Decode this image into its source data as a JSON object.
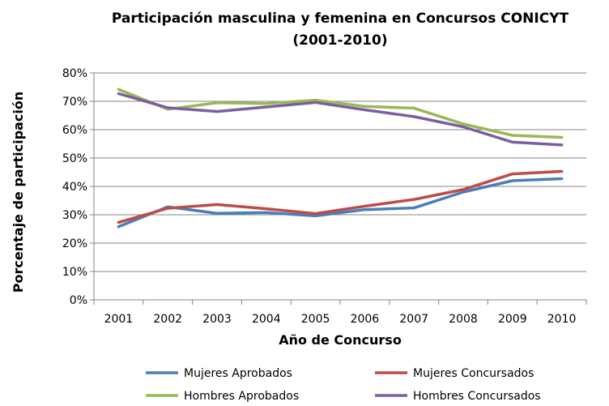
{
  "chart_data": {
    "type": "line",
    "title_line1": "Participación masculina y femenina en Concursos CONICYT",
    "title_line2": "(2001-2010)",
    "xlabel": "Año de Concurso",
    "ylabel": "Porcentaje de participación",
    "categories": [
      "2001",
      "2002",
      "2003",
      "2004",
      "2005",
      "2006",
      "2007",
      "2008",
      "2009",
      "2010"
    ],
    "y_ticks": [
      "0%",
      "10%",
      "20%",
      "30%",
      "40%",
      "50%",
      "60%",
      "70%",
      "80%"
    ],
    "ylim": [
      0,
      80
    ],
    "legend_position": "bottom",
    "grid": true,
    "series": [
      {
        "name": "Mujeres Aprobados",
        "color": "#4A7EBB",
        "values": [
          25.8,
          32.8,
          30.5,
          30.8,
          29.6,
          31.8,
          32.4,
          38.0,
          42.0,
          42.7
        ]
      },
      {
        "name": "Mujeres Concursados",
        "color": "#BE4B48",
        "values": [
          27.3,
          32.3,
          33.6,
          32.1,
          30.4,
          33.0,
          35.4,
          38.9,
          44.4,
          45.3
        ]
      },
      {
        "name": "Hombres Aprobados",
        "color": "#98B954",
        "values": [
          74.2,
          67.2,
          69.5,
          69.2,
          70.4,
          68.2,
          67.6,
          62.0,
          58.0,
          57.3
        ]
      },
      {
        "name": "Hombres Concursados",
        "color": "#7D5FA0",
        "values": [
          72.7,
          67.7,
          66.4,
          68.0,
          69.6,
          67.0,
          64.6,
          61.0,
          55.6,
          54.6
        ]
      }
    ]
  }
}
